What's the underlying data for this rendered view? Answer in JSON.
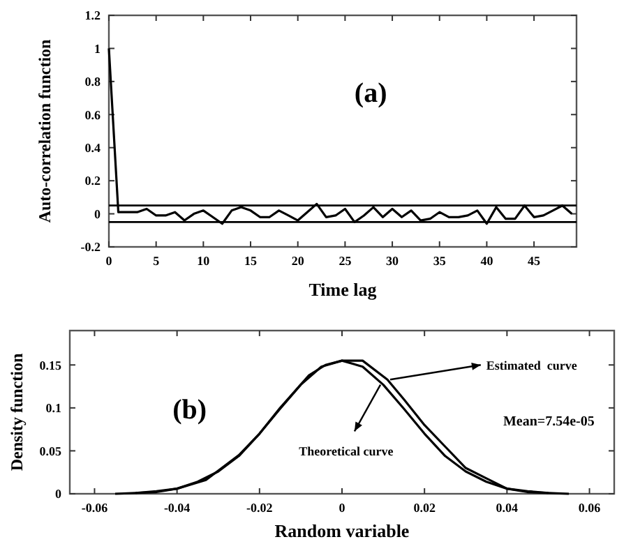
{
  "chart_data": [
    {
      "type": "line",
      "xlabel": "Time lag",
      "ylabel": "Auto-correlation function",
      "annotations": [
        "(a)"
      ],
      "x": [
        0,
        1,
        2,
        3,
        4,
        5,
        6,
        7,
        8,
        9,
        10,
        11,
        12,
        13,
        14,
        15,
        16,
        17,
        18,
        19,
        20,
        21,
        22,
        23,
        24,
        25,
        26,
        27,
        28,
        29,
        30,
        31,
        32,
        33,
        34,
        35,
        36,
        37,
        38,
        39,
        40,
        41,
        42,
        43,
        44,
        45,
        46,
        47,
        48,
        49
      ],
      "series": [
        {
          "color": "#000000",
          "values": [
            1,
            0.01,
            0.01,
            0.01,
            0.03,
            -0.01,
            -0.01,
            0.01,
            -0.04,
            0,
            0.02,
            -0.02,
            -0.06,
            0.02,
            0.04,
            0.02,
            -0.02,
            -0.02,
            0.02,
            -0.01,
            -0.04,
            0.01,
            0.06,
            -0.02,
            -0.01,
            0.03,
            -0.05,
            -0.01,
            0.04,
            -0.02,
            0.03,
            -0.02,
            0.02,
            -0.04,
            -0.03,
            0.01,
            -0.02,
            -0.02,
            -0.01,
            0.02,
            -0.06,
            0.04,
            -0.03,
            -0.03,
            0.05,
            -0.02,
            -0.01,
            0.02,
            0.05,
            0
          ]
        }
      ],
      "ref_lines": [
        {
          "axis": "y",
          "value": 0.05,
          "color": "#000000"
        },
        {
          "axis": "y",
          "value": -0.05,
          "color": "#000000"
        }
      ],
      "xlim": [
        0,
        49.5
      ],
      "ylim": [
        -0.2,
        1.2
      ],
      "xticks": [
        0,
        5,
        10,
        15,
        20,
        25,
        30,
        35,
        40,
        45
      ],
      "yticks": [
        -0.2,
        0,
        0.2,
        0.4,
        0.6,
        0.8,
        1,
        1.2
      ],
      "grid": false
    },
    {
      "type": "line",
      "xlabel": "Random variable",
      "ylabel": "Density function",
      "annotations": [
        "(b)",
        "Mean=7.54e-05"
      ],
      "series": [
        {
          "name": "Estimated  curve",
          "color": "#000000",
          "x": [
            -0.055,
            -0.045,
            -0.04,
            -0.033,
            -0.025,
            -0.02,
            -0.015,
            -0.008,
            -0.004,
            0,
            0.005,
            0.011,
            0.015,
            0.02,
            0.025,
            0.03,
            0.035,
            0.04,
            0.045,
            0.055
          ],
          "values": [
            0,
            0.002,
            0.006,
            0.016,
            0.045,
            0.07,
            0.1,
            0.138,
            0.15,
            0.155,
            0.155,
            0.133,
            0.11,
            0.08,
            0.055,
            0.03,
            0.018,
            0.006,
            0.002,
            0
          ]
        },
        {
          "name": "Theoretical curve",
          "color": "#000000",
          "x": [
            -0.05,
            -0.045,
            -0.04,
            -0.035,
            -0.03,
            -0.025,
            -0.02,
            -0.015,
            -0.01,
            -0.005,
            0,
            0.005,
            0.01,
            0.015,
            0.02,
            0.025,
            0.03,
            0.035,
            0.04,
            0.045,
            0.05
          ],
          "values": [
            0.001,
            0.003,
            0.006,
            0.014,
            0.026,
            0.044,
            0.07,
            0.099,
            0.127,
            0.148,
            0.155,
            0.148,
            0.127,
            0.099,
            0.07,
            0.044,
            0.026,
            0.014,
            0.006,
            0.003,
            0.001
          ]
        }
      ],
      "xlim": [
        -0.066,
        0.066
      ],
      "ylim": [
        0,
        0.19
      ],
      "xticks": [
        -0.06,
        -0.04,
        -0.02,
        0,
        0.02,
        0.04,
        0.06
      ],
      "yticks": [
        0,
        0.05,
        0.1,
        0.15
      ],
      "grid": false
    }
  ]
}
